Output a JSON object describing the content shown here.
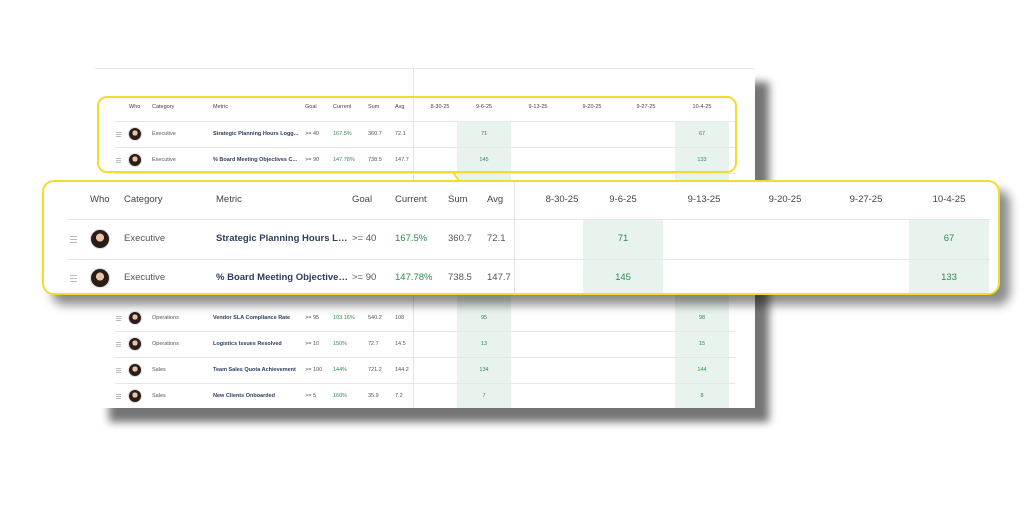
{
  "columns": {
    "who": "Who",
    "category": "Category",
    "metric": "Metric",
    "goal": "Goal",
    "current": "Current",
    "sum": "Sum",
    "avg": "Avg"
  },
  "dates": [
    "8-30-25",
    "9-6-25",
    "9-13-25",
    "9-20-25",
    "9-27-25",
    "10-4-25"
  ],
  "highlighted_dates": [
    "9-6-25",
    "10-4-25"
  ],
  "accent_color": "#f2dc2c",
  "rows": [
    {
      "category": "Executive",
      "metric": "Strategic Planning Hours Logg...",
      "goal": ">= 40",
      "current": "167.5%",
      "sum": "360.7",
      "avg": "72.1",
      "values": [
        "",
        "71",
        "",
        "",
        "",
        "67"
      ]
    },
    {
      "category": "Executive",
      "metric": "% Board Meeting Objectives C...",
      "goal": ">= 90",
      "current": "147.78%",
      "sum": "738.5",
      "avg": "147.7",
      "values": [
        "",
        "145",
        "",
        "",
        "",
        "133"
      ]
    },
    {
      "category": "Operations",
      "metric": "Vendor SLA Compliance Rate",
      "goal": ">= 95",
      "current": "103.16%",
      "sum": "540.2",
      "avg": "108",
      "values": [
        "",
        "95",
        "",
        "",
        "",
        "98"
      ]
    },
    {
      "category": "Operations",
      "metric": "Logistics Issues Resolved",
      "goal": ">= 10",
      "current": "150%",
      "sum": "72.7",
      "avg": "14.5",
      "values": [
        "",
        "13",
        "",
        "",
        "",
        "15"
      ]
    },
    {
      "category": "Sales",
      "metric": "Team Sales Quota Achievement",
      "goal": ">= 100",
      "current": "144%",
      "sum": "721.2",
      "avg": "144.2",
      "values": [
        "",
        "134",
        "",
        "",
        "",
        "144"
      ]
    },
    {
      "category": "Sales",
      "metric": "New Clients Onboarded",
      "goal": ">= 5",
      "current": "160%",
      "sum": "35.9",
      "avg": "7.2",
      "values": [
        "",
        "7",
        "",
        "",
        "",
        "8"
      ]
    }
  ]
}
